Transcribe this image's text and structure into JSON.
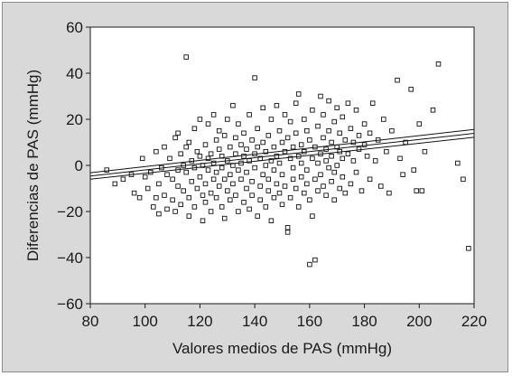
{
  "chart_data": {
    "type": "scatter",
    "title": "",
    "xlabel": "Valores medios de PAS (mmHg)",
    "ylabel": "Diferencias de PAS (mmHg)",
    "xlim": [
      80,
      220
    ],
    "ylim": [
      -60,
      60
    ],
    "x_ticks": [
      80,
      100,
      120,
      140,
      160,
      180,
      200,
      220
    ],
    "y_ticks": [
      -60,
      -40,
      -20,
      0,
      20,
      40,
      60
    ],
    "x_tick_labels": [
      "80",
      "100",
      "120",
      "140",
      "160",
      "180",
      "200",
      "220"
    ],
    "y_tick_labels": [
      "−60",
      "−40",
      "−20",
      "0",
      "20",
      "40",
      "60"
    ],
    "grid": false,
    "marker": "open-square",
    "colors": {
      "points": "#111111",
      "frame_bg": "#d9d9d9",
      "plot_bg": "#ffffff"
    },
    "points": [
      [
        86,
        -2
      ],
      [
        89,
        -8
      ],
      [
        92,
        -6
      ],
      [
        95,
        -4
      ],
      [
        96,
        -12
      ],
      [
        98,
        -14
      ],
      [
        99,
        3
      ],
      [
        100,
        -5
      ],
      [
        101,
        -10
      ],
      [
        102,
        -3
      ],
      [
        103,
        -18
      ],
      [
        104,
        -14
      ],
      [
        104,
        6
      ],
      [
        105,
        -8
      ],
      [
        105,
        -21
      ],
      [
        106,
        -1
      ],
      [
        107,
        -13
      ],
      [
        107,
        8
      ],
      [
        108,
        -19
      ],
      [
        108,
        -4
      ],
      [
        109,
        3
      ],
      [
        110,
        -6
      ],
      [
        110,
        -15
      ],
      [
        111,
        12
      ],
      [
        111,
        -20
      ],
      [
        112,
        -2
      ],
      [
        112,
        -9
      ],
      [
        112,
        14
      ],
      [
        113,
        5
      ],
      [
        113,
        -17
      ],
      [
        114,
        -11
      ],
      [
        114,
        0
      ],
      [
        115,
        47
      ],
      [
        115,
        -3
      ],
      [
        115,
        8
      ],
      [
        116,
        -22
      ],
      [
        116,
        -14
      ],
      [
        116,
        10
      ],
      [
        117,
        2
      ],
      [
        117,
        -7
      ],
      [
        118,
        16
      ],
      [
        118,
        -18
      ],
      [
        118,
        -1
      ],
      [
        119,
        6
      ],
      [
        119,
        -10
      ],
      [
        120,
        4
      ],
      [
        120,
        -5
      ],
      [
        120,
        20
      ],
      [
        121,
        -13
      ],
      [
        121,
        -24
      ],
      [
        121,
        0
      ],
      [
        122,
        9
      ],
      [
        122,
        -8
      ],
      [
        122,
        -16
      ],
      [
        123,
        3
      ],
      [
        123,
        18
      ],
      [
        123,
        -2
      ],
      [
        124,
        -12
      ],
      [
        124,
        5
      ],
      [
        124,
        -20
      ],
      [
        125,
        22
      ],
      [
        125,
        -6
      ],
      [
        125,
        1
      ],
      [
        126,
        11
      ],
      [
        126,
        -14
      ],
      [
        126,
        -3
      ],
      [
        127,
        7
      ],
      [
        127,
        -9
      ],
      [
        127,
        15
      ],
      [
        128,
        -1
      ],
      [
        128,
        -18
      ],
      [
        128,
        4
      ],
      [
        129,
        13
      ],
      [
        129,
        -6
      ],
      [
        129,
        -23
      ],
      [
        130,
        2
      ],
      [
        130,
        -11
      ],
      [
        130,
        20
      ],
      [
        131,
        8
      ],
      [
        131,
        -4
      ],
      [
        131,
        -15
      ],
      [
        132,
        26
      ],
      [
        132,
        0
      ],
      [
        132,
        -8
      ],
      [
        133,
        5
      ],
      [
        133,
        -13
      ],
      [
        133,
        12
      ],
      [
        134,
        -2
      ],
      [
        134,
        18
      ],
      [
        134,
        -20
      ],
      [
        135,
        9
      ],
      [
        135,
        -6
      ],
      [
        135,
        1
      ],
      [
        136,
        -16
      ],
      [
        136,
        14
      ],
      [
        136,
        4
      ],
      [
        137,
        -10
      ],
      [
        137,
        7
      ],
      [
        137,
        -3
      ],
      [
        138,
        22
      ],
      [
        138,
        -19
      ],
      [
        138,
        2
      ],
      [
        139,
        11
      ],
      [
        139,
        -7
      ],
      [
        139,
        -13
      ],
      [
        140,
        38
      ],
      [
        140,
        5
      ],
      [
        140,
        -1
      ],
      [
        141,
        -22
      ],
      [
        141,
        16
      ],
      [
        141,
        8
      ],
      [
        142,
        -9
      ],
      [
        142,
        3
      ],
      [
        142,
        -15
      ],
      [
        143,
        25
      ],
      [
        143,
        -4
      ],
      [
        143,
        10
      ],
      [
        144,
        -18
      ],
      [
        144,
        6
      ],
      [
        144,
        0
      ],
      [
        145,
        13
      ],
      [
        145,
        -11
      ],
      [
        145,
        -6
      ],
      [
        146,
        20
      ],
      [
        146,
        2
      ],
      [
        146,
        -24
      ],
      [
        147,
        8
      ],
      [
        147,
        -14
      ],
      [
        147,
        -2
      ],
      [
        148,
        26
      ],
      [
        148,
        4
      ],
      [
        148,
        -8
      ],
      [
        149,
        15
      ],
      [
        149,
        -12
      ],
      [
        149,
        1
      ],
      [
        150,
        -17
      ],
      [
        150,
        10
      ],
      [
        150,
        -4
      ],
      [
        151,
        22
      ],
      [
        151,
        6
      ],
      [
        151,
        -9
      ],
      [
        152,
        -29
      ],
      [
        152,
        -27
      ],
      [
        152,
        12
      ],
      [
        153,
        3
      ],
      [
        153,
        -14
      ],
      [
        153,
        19
      ],
      [
        154,
        -6
      ],
      [
        154,
        8
      ],
      [
        154,
        -1
      ],
      [
        155,
        27
      ],
      [
        155,
        -10
      ],
      [
        155,
        14
      ],
      [
        156,
        4
      ],
      [
        156,
        -18
      ],
      [
        156,
        31
      ],
      [
        157,
        9
      ],
      [
        157,
        -5
      ],
      [
        157,
        1
      ],
      [
        158,
        20
      ],
      [
        158,
        -12
      ],
      [
        158,
        6
      ],
      [
        159,
        -8
      ],
      [
        159,
        15
      ],
      [
        159,
        -2
      ],
      [
        160,
        -43
      ],
      [
        160,
        11
      ],
      [
        160,
        -15
      ],
      [
        161,
        24
      ],
      [
        161,
        3
      ],
      [
        161,
        -22
      ],
      [
        162,
        -41
      ],
      [
        162,
        8
      ],
      [
        162,
        -6
      ],
      [
        163,
        17
      ],
      [
        163,
        1
      ],
      [
        163,
        -11
      ],
      [
        164,
        30
      ],
      [
        164,
        5
      ],
      [
        164,
        -4
      ],
      [
        165,
        12
      ],
      [
        165,
        -9
      ],
      [
        165,
        22
      ],
      [
        166,
        -13
      ],
      [
        166,
        7
      ],
      [
        166,
        2
      ],
      [
        167,
        28
      ],
      [
        167,
        -1
      ],
      [
        167,
        15
      ],
      [
        168,
        -7
      ],
      [
        168,
        10
      ],
      [
        168,
        4
      ],
      [
        169,
        19
      ],
      [
        169,
        -3
      ],
      [
        169,
        -15
      ],
      [
        170,
        8
      ],
      [
        170,
        25
      ],
      [
        170,
        0
      ],
      [
        171,
        -10
      ],
      [
        171,
        14
      ],
      [
        171,
        6
      ],
      [
        172,
        3
      ],
      [
        172,
        -5
      ],
      [
        172,
        21
      ],
      [
        173,
        11
      ],
      [
        173,
        -12
      ],
      [
        174,
        27
      ],
      [
        174,
        5
      ],
      [
        175,
        -8
      ],
      [
        175,
        16
      ],
      [
        176,
        2
      ],
      [
        176,
        10
      ],
      [
        177,
        -3
      ],
      [
        177,
        24
      ],
      [
        178,
        13
      ],
      [
        178,
        7
      ],
      [
        179,
        -11
      ],
      [
        180,
        9
      ],
      [
        180,
        18
      ],
      [
        181,
        4
      ],
      [
        182,
        -6
      ],
      [
        182,
        14
      ],
      [
        183,
        27
      ],
      [
        184,
        2
      ],
      [
        185,
        11
      ],
      [
        186,
        -9
      ],
      [
        187,
        20
      ],
      [
        188,
        6
      ],
      [
        189,
        -12
      ],
      [
        190,
        15
      ],
      [
        192,
        37
      ],
      [
        193,
        3
      ],
      [
        194,
        -4
      ],
      [
        195,
        10
      ],
      [
        197,
        33
      ],
      [
        198,
        -2
      ],
      [
        199,
        -11
      ],
      [
        200,
        18
      ],
      [
        201,
        -11
      ],
      [
        202,
        6
      ],
      [
        205,
        24
      ],
      [
        207,
        44
      ],
      [
        214,
        1
      ],
      [
        216,
        -6
      ],
      [
        218,
        -36
      ]
    ],
    "regression_lines": [
      {
        "x": [
          80,
          220
        ],
        "y": [
          -3.2,
          15.6
        ]
      },
      {
        "x": [
          80,
          220
        ],
        "y": [
          -4.6,
          13.9
        ]
      },
      {
        "x": [
          80,
          220
        ],
        "y": [
          -6.0,
          12.2
        ]
      }
    ]
  }
}
